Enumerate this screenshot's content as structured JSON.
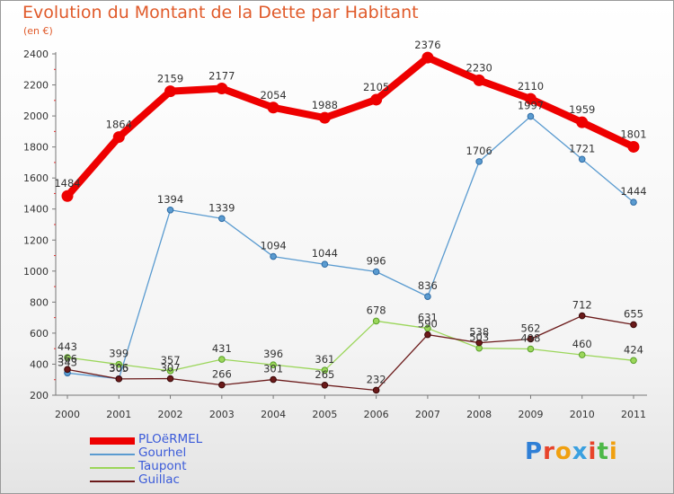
{
  "title": "Evolution du Montant de la Dette par Habitant",
  "subtitle": "(en €)",
  "logo_text": "Proxiti",
  "chart_data": {
    "type": "line",
    "x": [
      "2000",
      "2001",
      "2002",
      "2003",
      "2004",
      "2005",
      "2006",
      "2007",
      "2008",
      "2009",
      "2010",
      "2011"
    ],
    "ylim": [
      200,
      2400
    ],
    "yticks": [
      200,
      400,
      600,
      800,
      1000,
      1200,
      1400,
      1600,
      1800,
      2000,
      2200,
      2400
    ],
    "grid": false,
    "legend_position": "bottom-left",
    "series": [
      {
        "name": "PLOëRMEL",
        "color": "#ee0000",
        "values": [
          1484,
          1864,
          2159,
          2177,
          2054,
          1988,
          2105,
          2376,
          2230,
          2110,
          1959,
          1801
        ]
      },
      {
        "name": "Gourhel",
        "color": "#5a9bd0",
        "values": [
          343,
          306,
          1394,
          1339,
          1094,
          1044,
          996,
          836,
          1706,
          1997,
          1721,
          1444
        ]
      },
      {
        "name": "Taupont",
        "color": "#9bd65a",
        "values": [
          443,
          399,
          357,
          431,
          396,
          361,
          678,
          631,
          503,
          498,
          460,
          424
        ]
      },
      {
        "name": "Guillac",
        "color": "#6b1a1a",
        "values": [
          366,
          305,
          307,
          266,
          301,
          265,
          232,
          590,
          538,
          562,
          712,
          655
        ]
      }
    ]
  }
}
